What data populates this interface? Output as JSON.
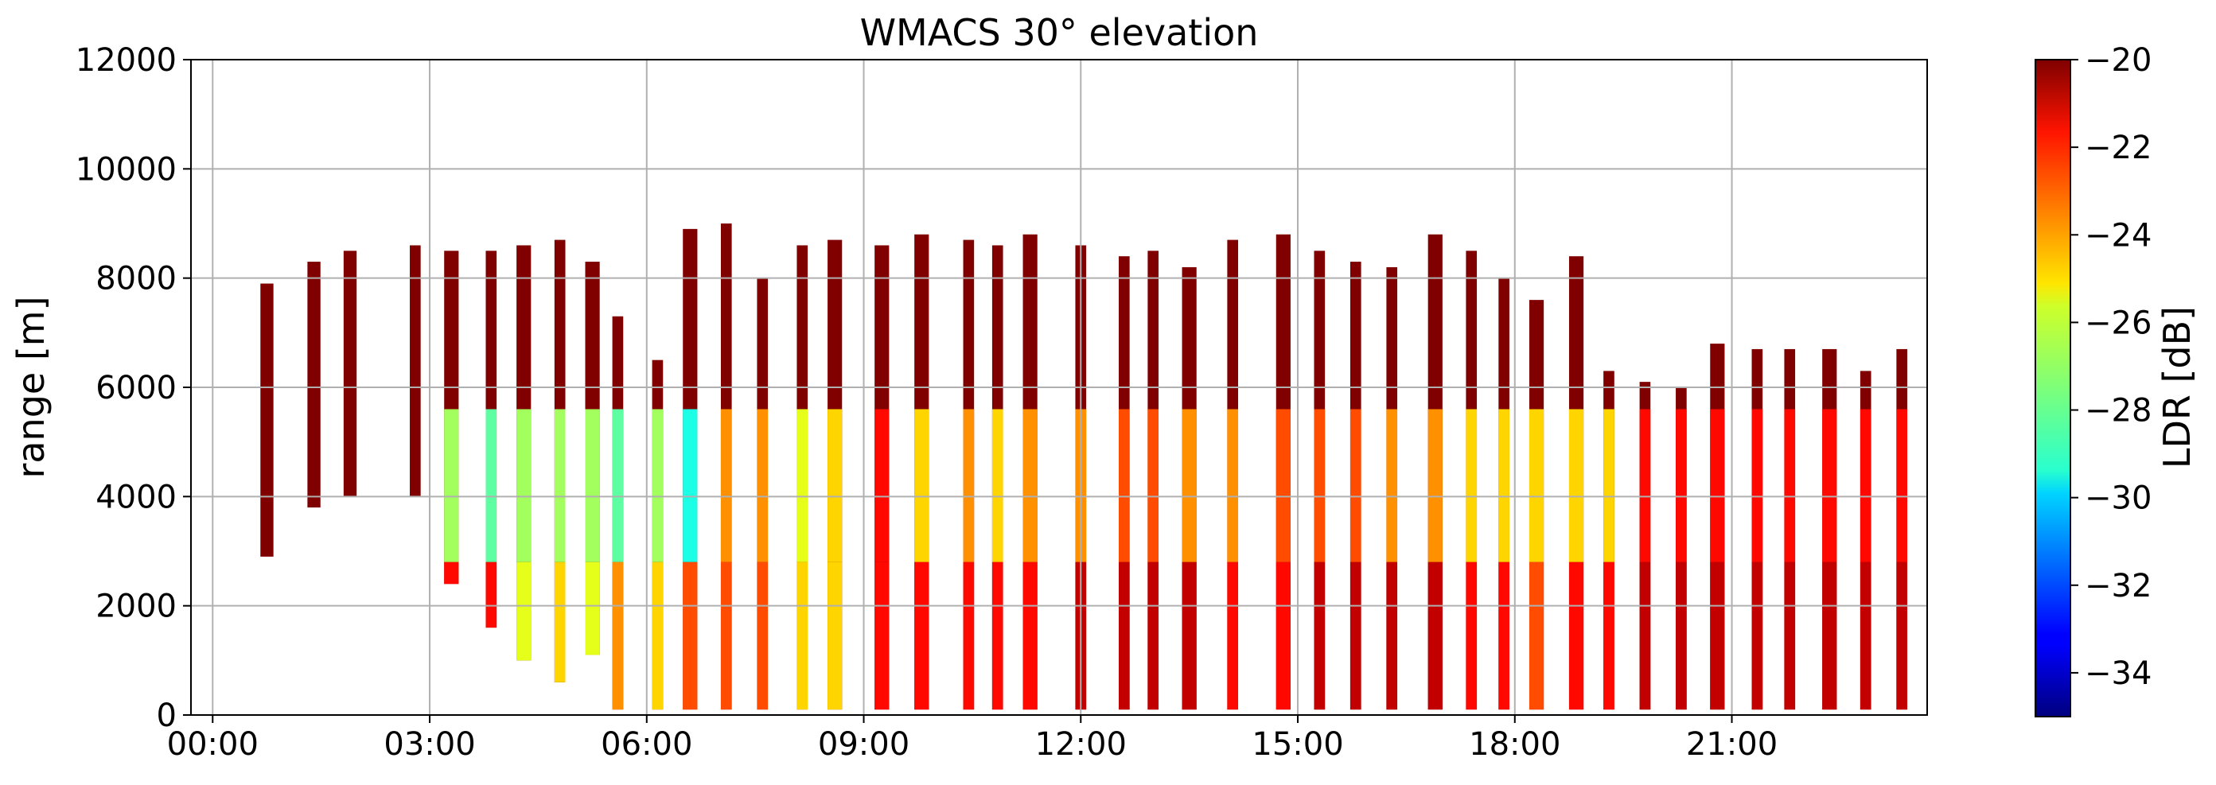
{
  "chart_data": {
    "type": "heatmap",
    "title": "WMACS 30° elevation",
    "ylabel": "range [m]",
    "xlabel": "",
    "colorbar_label": "LDR [dB]",
    "x_ticks": [
      "00:00",
      "03:00",
      "06:00",
      "09:00",
      "12:00",
      "15:00",
      "18:00",
      "21:00"
    ],
    "x_tick_hours": [
      0,
      3,
      6,
      9,
      12,
      15,
      18,
      21
    ],
    "xlim_hours": [
      -0.3,
      23.7
    ],
    "y_ticks": [
      0,
      2000,
      4000,
      6000,
      8000,
      10000,
      12000
    ],
    "ylim": [
      0,
      12000
    ],
    "colorbar_ticks": [
      -20,
      -22,
      -24,
      -26,
      -28,
      -30,
      -32,
      -34
    ],
    "colorbar_range": [
      -35,
      -20
    ],
    "colormap": "jet",
    "grid": true,
    "columns": [
      {
        "t": 0.75,
        "w": 0.18,
        "top": 7900,
        "base": 2900,
        "cloud": -20,
        "ice": -20,
        "rain": null
      },
      {
        "t": 1.4,
        "w": 0.18,
        "top": 8300,
        "base": 3800,
        "cloud": -20,
        "ice": -20,
        "rain": null
      },
      {
        "t": 1.9,
        "w": 0.18,
        "top": 8500,
        "base": 4000,
        "cloud": -20,
        "ice": -20,
        "rain": null
      },
      {
        "t": 2.8,
        "w": 0.15,
        "top": 8600,
        "base": 4000,
        "cloud": -20,
        "ice": -20,
        "rain": null
      },
      {
        "t": 3.3,
        "w": 0.2,
        "top": 8500,
        "base": 2400,
        "cloud": -20,
        "ice": -27,
        "rain": -22
      },
      {
        "t": 3.85,
        "w": 0.15,
        "top": 8500,
        "base": 1600,
        "cloud": -20,
        "ice": -28,
        "rain": -22
      },
      {
        "t": 4.3,
        "w": 0.2,
        "top": 8600,
        "base": 1000,
        "cloud": -20,
        "ice": -27,
        "rain": -26
      },
      {
        "t": 4.8,
        "w": 0.15,
        "top": 8700,
        "base": 600,
        "cloud": -20,
        "ice": -27,
        "rain": -25
      },
      {
        "t": 5.25,
        "w": 0.2,
        "top": 8300,
        "base": 1100,
        "cloud": -20,
        "ice": -27,
        "rain": -26
      },
      {
        "t": 5.6,
        "w": 0.15,
        "top": 7300,
        "base": 100,
        "cloud": -20,
        "ice": -28,
        "rain": -24
      },
      {
        "t": 6.15,
        "w": 0.15,
        "top": 6500,
        "base": 100,
        "cloud": -20,
        "ice": -27,
        "rain": -25
      },
      {
        "t": 6.6,
        "w": 0.2,
        "top": 8900,
        "base": 100,
        "cloud": -20,
        "ice": -29,
        "rain": -23
      },
      {
        "t": 7.1,
        "w": 0.15,
        "top": 9000,
        "base": 100,
        "cloud": -20,
        "ice": -24,
        "rain": -23
      },
      {
        "t": 7.6,
        "w": 0.15,
        "top": 8000,
        "base": 100,
        "cloud": -20,
        "ice": -24,
        "rain": -23
      },
      {
        "t": 8.15,
        "w": 0.15,
        "top": 8600,
        "base": 100,
        "cloud": -20,
        "ice": -26,
        "rain": -25
      },
      {
        "t": 8.6,
        "w": 0.2,
        "top": 8700,
        "base": 100,
        "cloud": -20,
        "ice": -25,
        "rain": -25
      },
      {
        "t": 9.25,
        "w": 0.2,
        "top": 8600,
        "base": 100,
        "cloud": -20,
        "ice": -22,
        "rain": -22
      },
      {
        "t": 9.8,
        "w": 0.2,
        "top": 8800,
        "base": 100,
        "cloud": -20,
        "ice": -25,
        "rain": -22
      },
      {
        "t": 10.45,
        "w": 0.15,
        "top": 8700,
        "base": 100,
        "cloud": -20,
        "ice": -24,
        "rain": -22
      },
      {
        "t": 10.85,
        "w": 0.15,
        "top": 8600,
        "base": 100,
        "cloud": -20,
        "ice": -25,
        "rain": -22
      },
      {
        "t": 11.3,
        "w": 0.2,
        "top": 8800,
        "base": 100,
        "cloud": -20,
        "ice": -24,
        "rain": -22
      },
      {
        "t": 12.0,
        "w": 0.15,
        "top": 8600,
        "base": 100,
        "cloud": -20,
        "ice": -24,
        "rain": -21
      },
      {
        "t": 12.6,
        "w": 0.15,
        "top": 8400,
        "base": 100,
        "cloud": -20,
        "ice": -23,
        "rain": -21
      },
      {
        "t": 13.0,
        "w": 0.15,
        "top": 8500,
        "base": 100,
        "cloud": -20,
        "ice": -23,
        "rain": -21
      },
      {
        "t": 13.5,
        "w": 0.2,
        "top": 8200,
        "base": 100,
        "cloud": -20,
        "ice": -24,
        "rain": -21
      },
      {
        "t": 14.1,
        "w": 0.15,
        "top": 8700,
        "base": 100,
        "cloud": -20,
        "ice": -24,
        "rain": -22
      },
      {
        "t": 14.8,
        "w": 0.2,
        "top": 8800,
        "base": 100,
        "cloud": -20,
        "ice": -23,
        "rain": -22
      },
      {
        "t": 15.3,
        "w": 0.15,
        "top": 8500,
        "base": 100,
        "cloud": -20,
        "ice": -23,
        "rain": -21
      },
      {
        "t": 15.8,
        "w": 0.15,
        "top": 8300,
        "base": 100,
        "cloud": -20,
        "ice": -23,
        "rain": -21
      },
      {
        "t": 16.3,
        "w": 0.15,
        "top": 8200,
        "base": 100,
        "cloud": -20,
        "ice": -24,
        "rain": -21
      },
      {
        "t": 16.9,
        "w": 0.2,
        "top": 8800,
        "base": 100,
        "cloud": -20,
        "ice": -24,
        "rain": -21
      },
      {
        "t": 17.4,
        "w": 0.15,
        "top": 8500,
        "base": 100,
        "cloud": -20,
        "ice": -25,
        "rain": -22
      },
      {
        "t": 17.85,
        "w": 0.15,
        "top": 8000,
        "base": 100,
        "cloud": -20,
        "ice": -25,
        "rain": -22
      },
      {
        "t": 18.3,
        "w": 0.2,
        "top": 7600,
        "base": 100,
        "cloud": -20,
        "ice": -25,
        "rain": -23
      },
      {
        "t": 18.85,
        "w": 0.2,
        "top": 8400,
        "base": 100,
        "cloud": -20,
        "ice": -25,
        "rain": -22
      },
      {
        "t": 19.3,
        "w": 0.15,
        "top": 6300,
        "base": 100,
        "cloud": -20,
        "ice": -25,
        "rain": -22
      },
      {
        "t": 19.8,
        "w": 0.15,
        "top": 6100,
        "base": 100,
        "cloud": -20,
        "ice": -22,
        "rain": -21
      },
      {
        "t": 20.3,
        "w": 0.15,
        "top": 6000,
        "base": 100,
        "cloud": -20,
        "ice": -22,
        "rain": -21
      },
      {
        "t": 20.8,
        "w": 0.2,
        "top": 6800,
        "base": 100,
        "cloud": -20,
        "ice": -22,
        "rain": -21
      },
      {
        "t": 21.35,
        "w": 0.15,
        "top": 6700,
        "base": 100,
        "cloud": -20,
        "ice": -22,
        "rain": -21
      },
      {
        "t": 21.8,
        "w": 0.15,
        "top": 6700,
        "base": 100,
        "cloud": -20,
        "ice": -22,
        "rain": -21
      },
      {
        "t": 22.35,
        "w": 0.2,
        "top": 6700,
        "base": 100,
        "cloud": -20,
        "ice": -22,
        "rain": -21
      },
      {
        "t": 22.85,
        "w": 0.15,
        "top": 6300,
        "base": 100,
        "cloud": -20,
        "ice": -22,
        "rain": -21
      },
      {
        "t": 23.35,
        "w": 0.15,
        "top": 6700,
        "base": 100,
        "cloud": -20,
        "ice": -22,
        "rain": -21
      }
    ]
  }
}
